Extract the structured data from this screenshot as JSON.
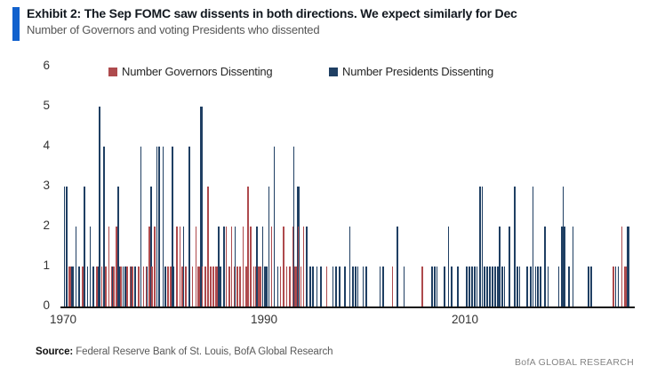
{
  "header": {
    "title": "Exhibit 2: The Sep FOMC saw dissents in both directions. We expect similarly for Dec",
    "subtitle": "Number of Governors and voting Presidents who dissented"
  },
  "legend": {
    "governors": {
      "label": "Number Governors Dissenting",
      "color": "#ae4a4d"
    },
    "presidents": {
      "label": "Number Presidents Dissenting",
      "color": "#1f3f63"
    }
  },
  "footer": {
    "source_label": "Source:",
    "source_text": " Federal Reserve Bank of St. Louis, BofA Global Research",
    "brand": "BofA GLOBAL RESEARCH"
  },
  "chart_data": {
    "type": "bar",
    "title": "Number of Governors and voting Presidents who dissented at each FOMC meeting",
    "xlabel": "",
    "ylabel": "",
    "ylim": [
      0,
      6
    ],
    "xlim": [
      1969.7,
      2026.3
    ],
    "grid": false,
    "legend_position": "top",
    "yticks": [
      0,
      1,
      2,
      3,
      4,
      5,
      6
    ],
    "xticks": [
      1970,
      1990,
      2010
    ],
    "series_info": [
      {
        "name": "Number Governors Dissenting",
        "color": "#ae4a4d"
      },
      {
        "name": "Number Presidents Dissenting",
        "color": "#1f3f63"
      }
    ],
    "meetings_format": "[year, governors_dissenting, presidents_dissenting, bar_width_px]",
    "meetings": [
      [
        1970.05,
        0,
        3,
        1
      ],
      [
        1970.3,
        0,
        3,
        1
      ],
      [
        1970.5,
        1,
        1,
        3
      ],
      [
        1970.8,
        0,
        1,
        1
      ],
      [
        1971.2,
        0,
        2,
        1
      ],
      [
        1971.5,
        0,
        1,
        2
      ],
      [
        1971.9,
        1,
        0,
        1
      ],
      [
        1972.05,
        0,
        3,
        1
      ],
      [
        1972.35,
        0,
        1,
        1
      ],
      [
        1972.65,
        0,
        2,
        1
      ],
      [
        1972.9,
        0,
        1,
        2
      ],
      [
        1973.3,
        1,
        1,
        1
      ],
      [
        1973.55,
        0,
        5,
        1
      ],
      [
        1973.8,
        1,
        0,
        1
      ],
      [
        1973.95,
        0,
        4,
        2
      ],
      [
        1974.2,
        1,
        0,
        1
      ],
      [
        1974.5,
        2,
        0,
        1
      ],
      [
        1974.75,
        1,
        1,
        1
      ],
      [
        1974.95,
        1,
        0,
        2
      ],
      [
        1975.2,
        2,
        3,
        2
      ],
      [
        1975.5,
        0,
        1,
        1
      ],
      [
        1975.7,
        1,
        0,
        2
      ],
      [
        1975.9,
        0,
        1,
        1
      ],
      [
        1976.1,
        0,
        1,
        2
      ],
      [
        1976.3,
        1,
        0,
        1
      ],
      [
        1976.6,
        1,
        1,
        1
      ],
      [
        1976.85,
        1,
        0,
        1
      ],
      [
        1977.1,
        0,
        1,
        1
      ],
      [
        1977.45,
        1,
        0,
        2
      ],
      [
        1977.7,
        0,
        4,
        1
      ],
      [
        1977.95,
        1,
        0,
        1
      ],
      [
        1978.2,
        1,
        1,
        1
      ],
      [
        1978.5,
        2,
        3,
        2
      ],
      [
        1978.8,
        1,
        0,
        1
      ],
      [
        1979.05,
        2,
        0,
        2
      ],
      [
        1979.3,
        0,
        4,
        1
      ],
      [
        1979.5,
        0,
        4,
        2
      ],
      [
        1979.9,
        0,
        4,
        1
      ],
      [
        1980.1,
        0,
        1,
        1
      ],
      [
        1980.35,
        1,
        0,
        2
      ],
      [
        1980.65,
        1,
        4,
        2
      ],
      [
        1980.95,
        0,
        1,
        1
      ],
      [
        1981.2,
        2,
        0,
        2
      ],
      [
        1981.55,
        2,
        0,
        1
      ],
      [
        1981.8,
        1,
        2,
        1
      ],
      [
        1982.1,
        1,
        0,
        2
      ],
      [
        1982.5,
        0,
        4,
        1
      ],
      [
        1982.8,
        1,
        0,
        1
      ],
      [
        1983.15,
        2,
        0,
        1
      ],
      [
        1983.4,
        1,
        5,
        3
      ],
      [
        1983.8,
        1,
        0,
        1
      ],
      [
        1984.1,
        1,
        0,
        2
      ],
      [
        1984.35,
        3,
        0,
        1
      ],
      [
        1984.6,
        1,
        0,
        2
      ],
      [
        1984.85,
        1,
        0,
        2
      ],
      [
        1985.1,
        1,
        0,
        2
      ],
      [
        1985.3,
        1,
        2,
        1
      ],
      [
        1985.6,
        0,
        1,
        1
      ],
      [
        1985.9,
        0,
        2,
        2
      ],
      [
        1986.2,
        2,
        0,
        1
      ],
      [
        1986.45,
        1,
        0,
        2
      ],
      [
        1986.7,
        2,
        0,
        1
      ],
      [
        1986.95,
        1,
        2,
        1
      ],
      [
        1987.25,
        1,
        0,
        2
      ],
      [
        1987.55,
        1,
        0,
        1
      ],
      [
        1987.85,
        2,
        0,
        1
      ],
      [
        1988.1,
        1,
        0,
        2
      ],
      [
        1988.35,
        3,
        0,
        1
      ],
      [
        1988.6,
        2,
        0,
        1
      ],
      [
        1988.9,
        1,
        0,
        1
      ],
      [
        1989.1,
        1,
        2,
        1
      ],
      [
        1989.4,
        1,
        0,
        2
      ],
      [
        1989.6,
        1,
        0,
        1
      ],
      [
        1989.8,
        0,
        2,
        1
      ],
      [
        1990.0,
        0,
        1,
        3
      ],
      [
        1990.25,
        0,
        1,
        1
      ],
      [
        1990.45,
        0,
        3,
        1
      ],
      [
        1990.7,
        2,
        0,
        1
      ],
      [
        1990.95,
        0,
        4,
        1
      ],
      [
        1991.3,
        0,
        1,
        1
      ],
      [
        1991.6,
        1,
        0,
        1
      ],
      [
        1991.9,
        2,
        0,
        2
      ],
      [
        1992.2,
        1,
        0,
        1
      ],
      [
        1992.45,
        1,
        0,
        2
      ],
      [
        1992.8,
        2,
        4,
        1
      ],
      [
        1993.05,
        1,
        3,
        3
      ],
      [
        1993.35,
        2,
        0,
        1
      ],
      [
        1993.6,
        1,
        0,
        1
      ],
      [
        1993.9,
        2,
        0,
        1
      ],
      [
        1994.2,
        0,
        2,
        1
      ],
      [
        1994.5,
        0,
        1,
        2
      ],
      [
        1994.8,
        0,
        1,
        2
      ],
      [
        1995.2,
        0,
        1,
        1
      ],
      [
        1995.6,
        0,
        1,
        1
      ],
      [
        1996.2,
        1,
        0,
        1
      ],
      [
        1996.8,
        0,
        1,
        1
      ],
      [
        1997.1,
        0,
        1,
        2
      ],
      [
        1997.45,
        0,
        1,
        1
      ],
      [
        1998.0,
        0,
        1,
        1
      ],
      [
        1998.5,
        0,
        2,
        1
      ],
      [
        1998.8,
        0,
        1,
        1
      ],
      [
        1999.05,
        0,
        1,
        2
      ],
      [
        1999.3,
        0,
        1,
        1
      ],
      [
        1999.8,
        0,
        1,
        1
      ],
      [
        2000.1,
        0,
        1,
        1
      ],
      [
        2001.5,
        0,
        1,
        1
      ],
      [
        2001.8,
        0,
        1,
        1
      ],
      [
        2002.7,
        1,
        0,
        1
      ],
      [
        2003.2,
        0,
        2,
        1
      ],
      [
        2003.9,
        0,
        1,
        1
      ],
      [
        2005.7,
        1,
        0,
        1
      ],
      [
        2006.6,
        0,
        1,
        2
      ],
      [
        2006.9,
        0,
        1,
        2
      ],
      [
        2007.15,
        0,
        1,
        1
      ],
      [
        2007.9,
        0,
        1,
        1
      ],
      [
        2008.3,
        0,
        2,
        1
      ],
      [
        2008.6,
        0,
        1,
        1
      ],
      [
        2009.2,
        0,
        1,
        2
      ],
      [
        2010.1,
        0,
        1,
        2
      ],
      [
        2010.35,
        0,
        1,
        2
      ],
      [
        2010.6,
        0,
        1,
        2
      ],
      [
        2010.85,
        0,
        1,
        2
      ],
      [
        2011.15,
        0,
        1,
        1
      ],
      [
        2011.45,
        0,
        3,
        1
      ],
      [
        2011.65,
        0,
        3,
        1
      ],
      [
        2011.9,
        0,
        1,
        2
      ],
      [
        2012.15,
        0,
        1,
        2
      ],
      [
        2012.4,
        0,
        1,
        2
      ],
      [
        2012.65,
        0,
        1,
        2
      ],
      [
        2012.9,
        0,
        1,
        2
      ],
      [
        2013.15,
        0,
        1,
        2
      ],
      [
        2013.4,
        0,
        2,
        1
      ],
      [
        2013.65,
        0,
        1,
        2
      ],
      [
        2013.9,
        0,
        1,
        1
      ],
      [
        2014.35,
        0,
        2,
        2
      ],
      [
        2014.9,
        0,
        3,
        1
      ],
      [
        2015.15,
        0,
        1,
        1
      ],
      [
        2015.4,
        0,
        1,
        1
      ],
      [
        2016.15,
        0,
        1,
        1
      ],
      [
        2016.45,
        0,
        1,
        2
      ],
      [
        2016.7,
        0,
        3,
        1
      ],
      [
        2016.95,
        0,
        1,
        1
      ],
      [
        2017.2,
        0,
        1,
        1
      ],
      [
        2017.45,
        0,
        1,
        1
      ],
      [
        2017.9,
        0,
        2,
        1
      ],
      [
        2018.2,
        0,
        1,
        1
      ],
      [
        2019.25,
        0,
        1,
        1
      ],
      [
        2019.55,
        0,
        2,
        2
      ],
      [
        2019.7,
        0,
        3,
        1
      ],
      [
        2019.85,
        0,
        2,
        2
      ],
      [
        2020.3,
        0,
        1,
        1
      ],
      [
        2020.7,
        0,
        2,
        1
      ],
      [
        2022.25,
        0,
        1,
        1
      ],
      [
        2022.5,
        0,
        1,
        1
      ],
      [
        2024.7,
        1,
        0,
        1
      ],
      [
        2024.95,
        0,
        1,
        1
      ],
      [
        2025.2,
        0,
        1,
        1
      ],
      [
        2025.55,
        2,
        0,
        1
      ],
      [
        2025.8,
        1,
        2,
        3
      ]
    ]
  }
}
